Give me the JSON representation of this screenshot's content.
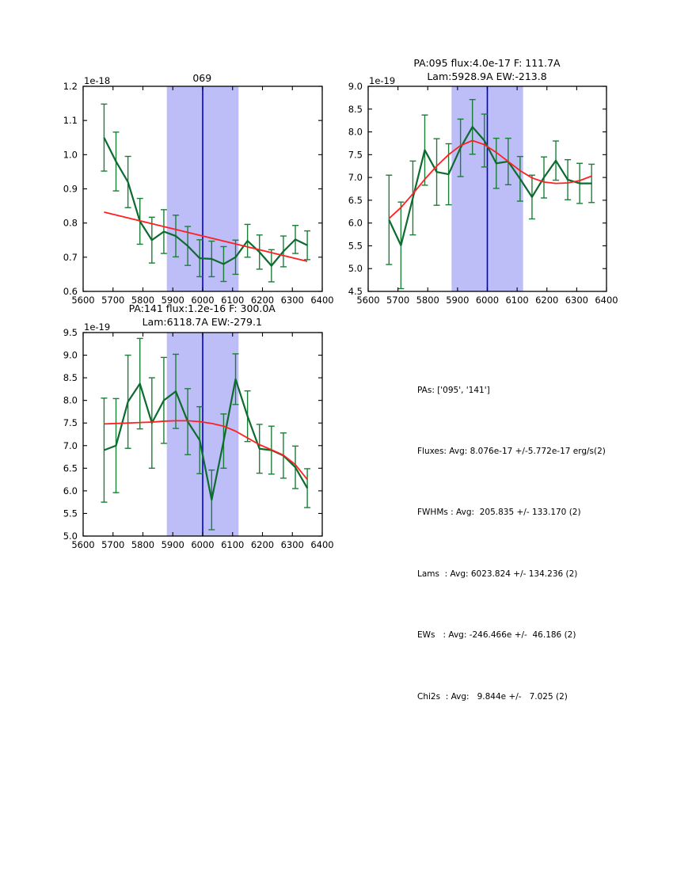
{
  "figure": {
    "background": "#ffffff"
  },
  "colors": {
    "spectrum": "#0d6b2f",
    "errorbar": "#1b7f37",
    "fit": "#ff2020",
    "band": "#bdbdf8",
    "vline": "#0000cc",
    "axis": "#000000"
  },
  "chart_data": [
    {
      "type": "line",
      "title_lines": [
        "069"
      ],
      "offset_label": "1e-18",
      "xlim": [
        5600,
        6400
      ],
      "ylim": [
        0.6,
        1.2
      ],
      "xticks": [
        "5600",
        "5700",
        "5800",
        "5900",
        "6000",
        "6100",
        "6200",
        "6300",
        "6400"
      ],
      "yticks": [
        "0.6",
        "0.7",
        "0.8",
        "0.9",
        "1.0",
        "1.1",
        "1.2"
      ],
      "band": [
        5880,
        6120
      ],
      "vline": 6000,
      "x": [
        5670,
        5710,
        5750,
        5790,
        5830,
        5870,
        5910,
        5950,
        5990,
        6030,
        6070,
        6110,
        6150,
        6190,
        6230,
        6270,
        6310,
        6350
      ],
      "spectrum": [
        1.05,
        0.98,
        0.92,
        0.805,
        0.75,
        0.775,
        0.762,
        0.733,
        0.697,
        0.695,
        0.68,
        0.7,
        0.748,
        0.715,
        0.675,
        0.717,
        0.752,
        0.735
      ],
      "yerr": [
        0.098,
        0.086,
        0.075,
        0.067,
        0.067,
        0.064,
        0.061,
        0.057,
        0.054,
        0.052,
        0.051,
        0.05,
        0.048,
        0.05,
        0.047,
        0.045,
        0.041,
        0.042
      ],
      "fit_x": [
        5670,
        6350
      ],
      "fit_y": [
        0.832,
        0.688
      ]
    },
    {
      "type": "line",
      "title_lines": [
        "PA:095 flux:4.0e-17 F: 111.7A",
        "Lam:5928.9A EW:-213.8"
      ],
      "offset_label": "1e-19",
      "xlim": [
        5600,
        6400
      ],
      "ylim": [
        4.5,
        9.0
      ],
      "xticks": [
        "5600",
        "5700",
        "5800",
        "5900",
        "6000",
        "6100",
        "6200",
        "6300",
        "6400"
      ],
      "yticks": [
        "4.5",
        "5.0",
        "5.5",
        "6.0",
        "6.5",
        "7.0",
        "7.5",
        "8.0",
        "8.5",
        "9.0"
      ],
      "band": [
        5880,
        6120
      ],
      "vline": 6000,
      "x": [
        5670,
        5710,
        5750,
        5790,
        5830,
        5870,
        5910,
        5950,
        5990,
        6030,
        6070,
        6110,
        6150,
        6190,
        6230,
        6270,
        6310,
        6350
      ],
      "spectrum": [
        6.07,
        5.51,
        6.55,
        7.6,
        7.12,
        7.07,
        7.65,
        8.11,
        7.81,
        7.31,
        7.35,
        6.97,
        6.57,
        7.0,
        7.37,
        6.95,
        6.87,
        6.87
      ],
      "yerr": [
        0.98,
        0.95,
        0.81,
        0.77,
        0.73,
        0.67,
        0.63,
        0.6,
        0.58,
        0.55,
        0.51,
        0.49,
        0.48,
        0.45,
        0.43,
        0.44,
        0.44,
        0.42
      ],
      "fit_x": [
        5670,
        5710,
        5750,
        5790,
        5830,
        5870,
        5910,
        5950,
        5990,
        6030,
        6070,
        6110,
        6150,
        6190,
        6230,
        6270,
        6310,
        6350
      ],
      "fit_y": [
        6.1,
        6.34,
        6.64,
        6.96,
        7.25,
        7.5,
        7.7,
        7.81,
        7.72,
        7.55,
        7.35,
        7.15,
        6.99,
        6.9,
        6.87,
        6.88,
        6.93,
        7.03
      ]
    },
    {
      "type": "line",
      "title_lines": [
        "PA:141 flux:1.2e-16 F: 300.0A",
        "Lam:6118.7A EW:-279.1"
      ],
      "offset_label": "1e-19",
      "xlim": [
        5600,
        6400
      ],
      "ylim": [
        5.0,
        9.5
      ],
      "xticks": [
        "5600",
        "5700",
        "5800",
        "5900",
        "6000",
        "6100",
        "6200",
        "6300",
        "6400"
      ],
      "yticks": [
        "5.0",
        "5.5",
        "6.0",
        "6.5",
        "7.0",
        "7.5",
        "8.0",
        "8.5",
        "9.0",
        "9.5"
      ],
      "band": [
        5880,
        6120
      ],
      "vline": 6000,
      "x": [
        5670,
        5710,
        5750,
        5790,
        5830,
        5870,
        5910,
        5950,
        5990,
        6030,
        6070,
        6110,
        6150,
        6190,
        6230,
        6270,
        6310,
        6350
      ],
      "spectrum": [
        6.9,
        7.0,
        7.97,
        8.37,
        7.5,
        8.0,
        8.2,
        7.53,
        7.12,
        5.8,
        7.1,
        8.47,
        7.65,
        6.93,
        6.9,
        6.78,
        6.52,
        6.06
      ],
      "yerr": [
        1.15,
        1.04,
        1.03,
        1.0,
        1.0,
        0.95,
        0.82,
        0.73,
        0.74,
        0.66,
        0.6,
        0.56,
        0.56,
        0.54,
        0.53,
        0.5,
        0.47,
        0.43
      ],
      "fit_x": [
        5670,
        5710,
        5750,
        5790,
        5830,
        5870,
        5910,
        5950,
        5990,
        6030,
        6070,
        6110,
        6150,
        6190,
        6230,
        6270,
        6310,
        6350
      ],
      "fit_y": [
        7.48,
        7.49,
        7.5,
        7.51,
        7.52,
        7.54,
        7.55,
        7.55,
        7.53,
        7.49,
        7.43,
        7.32,
        7.17,
        7.02,
        6.91,
        6.79,
        6.58,
        6.25
      ]
    }
  ],
  "stats_panel": {
    "lines": [
      "PAs: ['095', '141']",
      "Fluxes: Avg: 8.076e-17 +/-5.772e-17 erg/s(2)",
      "FWHMs : Avg:  205.835 +/- 133.170 (2)",
      "Lams  : Avg: 6023.824 +/- 134.236 (2)",
      "EWs   : Avg: -246.466e +/-  46.186 (2)",
      "Chi2s  : Avg:   9.844e +/-   7.025 (2)"
    ]
  }
}
